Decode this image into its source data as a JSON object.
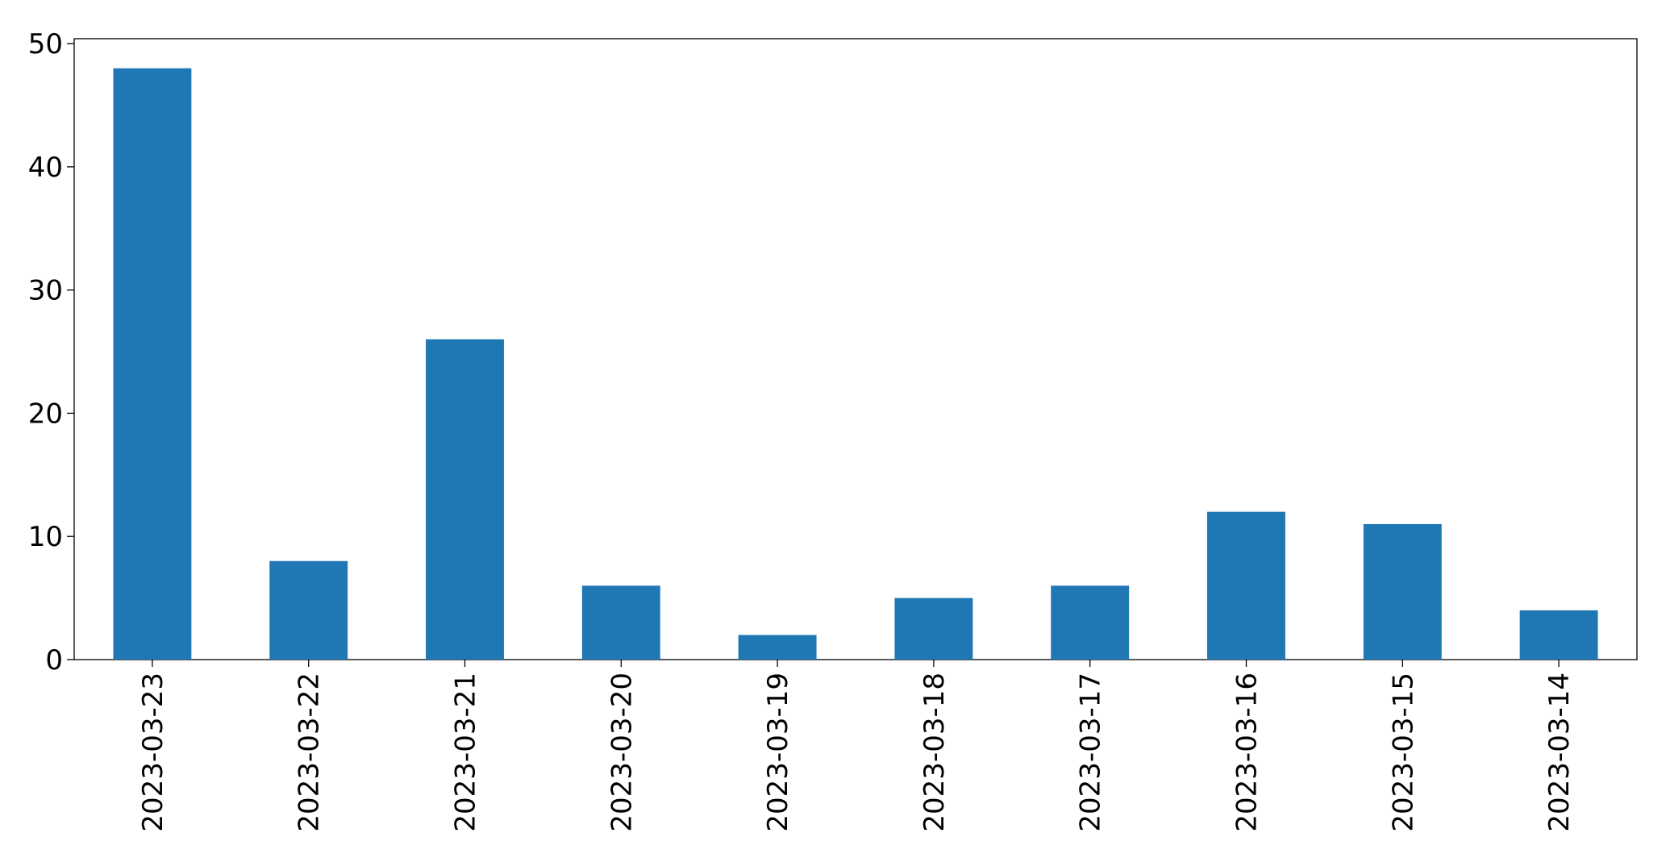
{
  "chart_data": {
    "type": "bar",
    "categories": [
      "2023-03-23",
      "2023-03-22",
      "2023-03-21",
      "2023-03-20",
      "2023-03-19",
      "2023-03-18",
      "2023-03-17",
      "2023-03-16",
      "2023-03-15",
      "2023-03-14"
    ],
    "values": [
      48,
      8,
      26,
      6,
      2,
      5,
      6,
      12,
      11,
      4
    ],
    "color": "#1f77b4",
    "ylim": [
      0,
      50.4
    ],
    "yticks": [
      0,
      10,
      20,
      30,
      40,
      50
    ],
    "grid": false
  }
}
